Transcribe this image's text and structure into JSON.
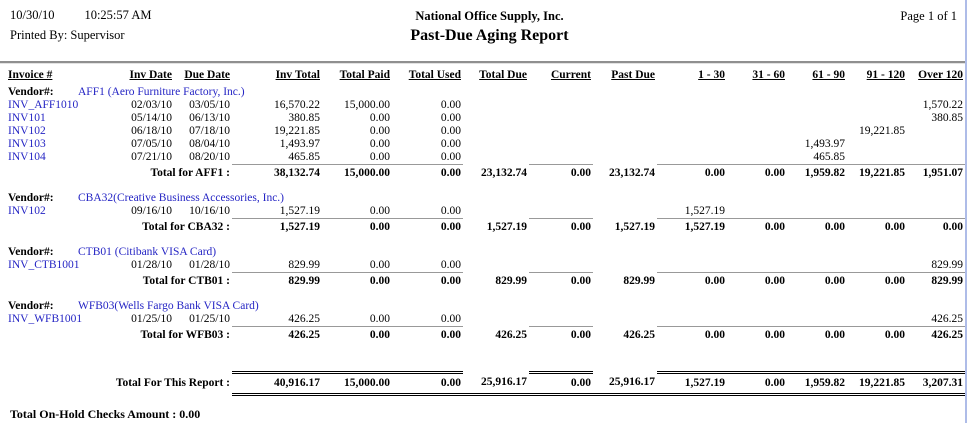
{
  "header": {
    "date": "10/30/10",
    "time": "10:25:57 AM",
    "printed_by": "Printed By: Supervisor",
    "company": "National Office Supply, Inc.",
    "title": "Past-Due Aging Report",
    "page_label": "Page 1 of 1"
  },
  "table": {
    "vendor_label": "Vendor#:",
    "columns": [
      "Invoice #",
      "Inv Date",
      "Due Date",
      "Inv Total",
      "Total Paid",
      "Total Used",
      "Total Due",
      "Current",
      "Past Due",
      "1 - 30",
      "31 - 60",
      "61 - 90",
      "91 - 120",
      "Over 120"
    ],
    "groups": [
      {
        "vendor": "AFF1 (Aero Furniture Factory, Inc.)",
        "rows": [
          {
            "invoice": "INV_AFF1010",
            "values": [
              "02/03/10",
              "03/05/10",
              "16,570.22",
              "15,000.00",
              "0.00",
              "",
              "",
              "",
              "",
              "",
              "",
              "",
              "1,570.22"
            ]
          },
          {
            "invoice": "INV101",
            "values": [
              "05/14/10",
              "06/13/10",
              "380.85",
              "0.00",
              "0.00",
              "",
              "",
              "",
              "",
              "",
              "",
              "",
              "380.85"
            ]
          },
          {
            "invoice": "INV102",
            "values": [
              "06/18/10",
              "07/18/10",
              "19,221.85",
              "0.00",
              "0.00",
              "",
              "",
              "",
              "",
              "",
              "",
              "19,221.85",
              ""
            ]
          },
          {
            "invoice": "INV103",
            "values": [
              "07/05/10",
              "08/04/10",
              "1,493.97",
              "0.00",
              "0.00",
              "",
              "",
              "",
              "",
              "",
              "1,493.97",
              "",
              ""
            ]
          },
          {
            "invoice": "INV104",
            "values": [
              "07/21/10",
              "08/20/10",
              "465.85",
              "0.00",
              "0.00",
              "",
              "",
              "",
              "",
              "",
              "465.85",
              "",
              ""
            ]
          }
        ],
        "total": {
          "label": "Total for AFF1 :",
          "values": [
            "38,132.74",
            "15,000.00",
            "0.00",
            "23,132.74",
            "0.00",
            "23,132.74",
            "0.00",
            "0.00",
            "1,959.82",
            "19,221.85",
            "1,951.07"
          ]
        }
      },
      {
        "vendor": "CBA32(Creative Business Accessories, Inc.)",
        "rows": [
          {
            "invoice": "INV102",
            "values": [
              "09/16/10",
              "10/16/10",
              "1,527.19",
              "0.00",
              "0.00",
              "",
              "",
              "",
              "1,527.19",
              "",
              "",
              "",
              ""
            ]
          }
        ],
        "total": {
          "label": "Total for CBA32 :",
          "values": [
            "1,527.19",
            "0.00",
            "0.00",
            "1,527.19",
            "0.00",
            "1,527.19",
            "1,527.19",
            "0.00",
            "0.00",
            "0.00",
            "0.00"
          ]
        }
      },
      {
        "vendor": "CTB01 (Citibank VISA Card)",
        "rows": [
          {
            "invoice": "INV_CTB1001",
            "values": [
              "01/28/10",
              "01/28/10",
              "829.99",
              "0.00",
              "0.00",
              "",
              "",
              "",
              "",
              "",
              "",
              "",
              "829.99"
            ]
          }
        ],
        "total": {
          "label": "Total for CTB01 :",
          "values": [
            "829.99",
            "0.00",
            "0.00",
            "829.99",
            "0.00",
            "829.99",
            "0.00",
            "0.00",
            "0.00",
            "0.00",
            "829.99"
          ]
        }
      },
      {
        "vendor": "WFB03(Wells Fargo Bank VISA Card)",
        "rows": [
          {
            "invoice": "INV_WFB1001",
            "values": [
              "01/25/10",
              "01/25/10",
              "426.25",
              "0.00",
              "0.00",
              "",
              "",
              "",
              "",
              "",
              "",
              "",
              "426.25"
            ]
          }
        ],
        "total": {
          "label": "Total for WFB03 :",
          "values": [
            "426.25",
            "0.00",
            "0.00",
            "426.25",
            "0.00",
            "426.25",
            "0.00",
            "0.00",
            "0.00",
            "0.00",
            "426.25"
          ]
        }
      }
    ],
    "grand_total": {
      "label": "Total For This Report :",
      "values": [
        "40,916.17",
        "15,000.00",
        "0.00",
        "25,916.17",
        "0.00",
        "25,916.17",
        "1,527.19",
        "0.00",
        "1,959.82",
        "19,221.85",
        "3,207.31"
      ]
    }
  },
  "footer": {
    "on_hold_label": "Total On-Hold Checks Amount :",
    "on_hold_value": "0.00"
  },
  "colors": {
    "link_blue": "#2525c4",
    "total_line_gray": "#999999",
    "header_rule_gray": "#8f8f8f",
    "window_edge_blue": "#aebce8"
  }
}
